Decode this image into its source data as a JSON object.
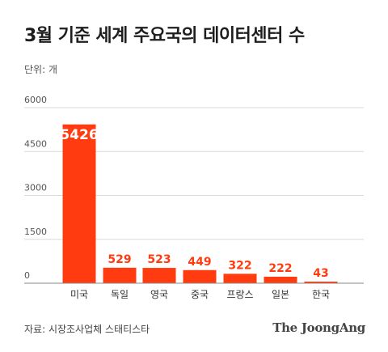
{
  "chart_data": {
    "type": "bar",
    "title": "3월 기준 세계 주요국의 데이터센터 수",
    "unit_label": "단위: 개",
    "categories": [
      "미국",
      "독일",
      "영국",
      "중국",
      "프랑스",
      "일본",
      "한국"
    ],
    "values": [
      5426,
      529,
      523,
      449,
      322,
      222,
      43
    ],
    "y_ticks": [
      "0",
      "1500",
      "3000",
      "4500",
      "6000"
    ],
    "ylim": [
      0,
      6000
    ],
    "grid": true,
    "bar_color": "#ff3b0f",
    "label_color": "#ff3b0f",
    "highlight_label_color": "#ffffff",
    "source": "자료: 시장조사업체 스태티스타"
  },
  "brand": "The JoongAng"
}
